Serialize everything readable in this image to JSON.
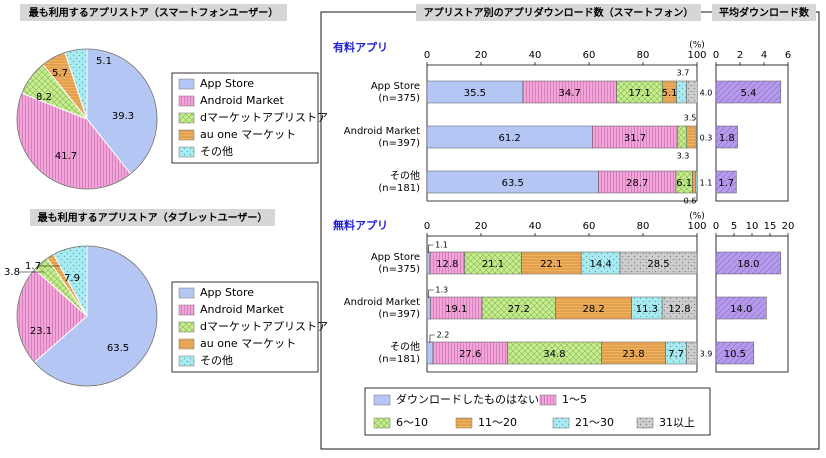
{
  "palette": {
    "app_store": "#b4c6f4",
    "android": "#f7a2dc",
    "docomo": "#c4f08a",
    "au": "#f5b05a",
    "other": "#a6ecf2",
    "none_dl": "#b4c6f4",
    "r1_5": "#f7a2dc",
    "r6_10": "#c4f08a",
    "r11_20": "#f5b05a",
    "r21_30": "#a6ecf2",
    "r31plus": "#cfcfcf",
    "avg": "#b69af0",
    "paid_label": "#1f1fd0",
    "title_bg": "#d6d6d6"
  },
  "chart_data": [
    {
      "type": "pie",
      "title": "最も利用するアプリストア（スマートフォンユーザー）",
      "slices": [
        {
          "name": "App Store",
          "value": 39.3,
          "label": "39.3",
          "color_key": "app_store"
        },
        {
          "name": "Android Market",
          "value": 41.7,
          "label": "41.7",
          "color_key": "android"
        },
        {
          "name": "dマーケットアプリストア",
          "value": 8.2,
          "label": "8.2",
          "color_key": "docomo"
        },
        {
          "name": "au one マーケット",
          "value": 5.7,
          "label": "5.7",
          "color_key": "au"
        },
        {
          "name": "その他",
          "value": 5.1,
          "label": "5.1",
          "color_key": "other"
        }
      ],
      "legend": [
        "App Store",
        "Android Market",
        "dマーケットアプリストア",
        "au one マーケット",
        "その他"
      ]
    },
    {
      "type": "pie",
      "title": "最も利用するアプリストア（タブレットユーザー）",
      "slices": [
        {
          "name": "App Store",
          "value": 63.5,
          "label": "63.5",
          "color_key": "app_store"
        },
        {
          "name": "Android Market",
          "value": 23.1,
          "label": "23.1",
          "color_key": "android"
        },
        {
          "name": "dマーケットアプリストア",
          "value": 3.8,
          "label": "3.8",
          "color_key": "docomo"
        },
        {
          "name": "au one マーケット",
          "value": 1.7,
          "label": "1.7",
          "color_key": "au"
        },
        {
          "name": "その他",
          "value": 7.9,
          "label": "7.9",
          "color_key": "other"
        }
      ],
      "legend": [
        "App Store",
        "Android Market",
        "dマーケットアプリストア",
        "au one マーケット",
        "その他"
      ]
    },
    {
      "type": "bar",
      "orientation": "horizontal-stacked",
      "panel_title": "アプリストア別のアプリダウンロード数（スマートフォン）",
      "section": "有料アプリ",
      "unit": "(%)",
      "xlim": [
        0,
        100
      ],
      "ticks": [
        0,
        20,
        40,
        60,
        80,
        100
      ],
      "categories": [
        "App Store\n(n=375)",
        "Android Market\n(n=397)",
        "その他\n(n=181)"
      ],
      "series": [
        {
          "name": "ダウンロードしたものはない",
          "color_key": "none_dl",
          "values": [
            35.5,
            61.2,
            63.5
          ]
        },
        {
          "name": "1〜5",
          "color_key": "r1_5",
          "values": [
            34.7,
            31.7,
            28.7
          ]
        },
        {
          "name": "6〜10",
          "color_key": "r6_10",
          "values": [
            17.1,
            3.3,
            6.1
          ]
        },
        {
          "name": "11〜20",
          "color_key": "r11_20",
          "values": [
            5.1,
            3.5,
            1.1
          ]
        },
        {
          "name": "21〜30",
          "color_key": "r21_30",
          "values": [
            3.7,
            0.3,
            0.6
          ]
        },
        {
          "name": "31以上",
          "color_key": "r31plus",
          "values": [
            4.0,
            0.0,
            0.0
          ]
        }
      ],
      "inside_labels": [
        [
          "35.5",
          "34.7",
          "17.1",
          "5.1",
          "",
          ""
        ],
        [
          "61.2",
          "31.7",
          "",
          "",
          "",
          ""
        ],
        [
          "63.5",
          "28.7",
          "6.1",
          "",
          "",
          ""
        ]
      ],
      "callouts": [
        {
          "row": 0,
          "text": "3.7",
          "pos": "above"
        },
        {
          "row": 0,
          "text": "4.0",
          "pos": "right"
        },
        {
          "row": 1,
          "text": "3.5",
          "pos": "above"
        },
        {
          "row": 1,
          "text": "3.3",
          "pos": "below"
        },
        {
          "row": 1,
          "text": "0.3",
          "pos": "right"
        },
        {
          "row": 2,
          "text": "1.1",
          "pos": "right"
        },
        {
          "row": 2,
          "text": "0.6",
          "pos": "below"
        }
      ]
    },
    {
      "type": "bar",
      "orientation": "horizontal",
      "panel_title": "平均ダウンロード数",
      "section": "有料アプリ",
      "xlim": [
        0,
        6
      ],
      "ticks": [
        0,
        2,
        4,
        6
      ],
      "categories": [
        "App Store",
        "Android Market",
        "その他"
      ],
      "values": [
        5.4,
        1.8,
        1.7
      ],
      "labels": [
        "5.4",
        "1.8",
        "1.7"
      ]
    },
    {
      "type": "bar",
      "orientation": "horizontal-stacked",
      "section": "無料アプリ",
      "unit": "(%)",
      "xlim": [
        0,
        100
      ],
      "ticks": [
        0,
        20,
        40,
        60,
        80,
        100
      ],
      "categories": [
        "App Store\n(n=375)",
        "Android Market\n(n=397)",
        "その他\n(n=181)"
      ],
      "series": [
        {
          "name": "ダウンロードしたものはない",
          "color_key": "none_dl",
          "values": [
            1.1,
            1.3,
            2.2
          ]
        },
        {
          "name": "1〜5",
          "color_key": "r1_5",
          "values": [
            12.8,
            19.1,
            27.6
          ]
        },
        {
          "name": "6〜10",
          "color_key": "r6_10",
          "values": [
            21.1,
            27.2,
            34.8
          ]
        },
        {
          "name": "11〜20",
          "color_key": "r11_20",
          "values": [
            22.1,
            28.2,
            23.8
          ]
        },
        {
          "name": "21〜30",
          "color_key": "r21_30",
          "values": [
            14.4,
            11.3,
            7.7
          ]
        },
        {
          "name": "31以上",
          "color_key": "r31plus",
          "values": [
            28.5,
            12.8,
            3.9
          ]
        }
      ],
      "inside_labels": [
        [
          "",
          "12.8",
          "21.1",
          "22.1",
          "14.4",
          "28.5"
        ],
        [
          "",
          "19.1",
          "27.2",
          "28.2",
          "11.3",
          "12.8"
        ],
        [
          "",
          "27.6",
          "34.8",
          "23.8",
          "7.7",
          ""
        ]
      ],
      "callouts": [
        {
          "row": 0,
          "text": "1.1",
          "pos": "above-left"
        },
        {
          "row": 1,
          "text": "1.3",
          "pos": "above-left"
        },
        {
          "row": 2,
          "text": "2.2",
          "pos": "above-left"
        },
        {
          "row": 2,
          "text": "3.9",
          "pos": "right"
        }
      ]
    },
    {
      "type": "bar",
      "orientation": "horizontal",
      "section": "無料アプリ",
      "xlim": [
        0,
        20
      ],
      "ticks": [
        0,
        5,
        10,
        15,
        20
      ],
      "categories": [
        "App Store",
        "Android Market",
        "その他"
      ],
      "values": [
        18.0,
        14.0,
        10.5
      ],
      "labels": [
        "18.0",
        "14.0",
        "10.5"
      ]
    }
  ],
  "legend_bottom": {
    "items": [
      "ダウンロードしたものはない",
      "1〜5",
      "6〜10",
      "11〜20",
      "21〜30",
      "31以上"
    ]
  }
}
